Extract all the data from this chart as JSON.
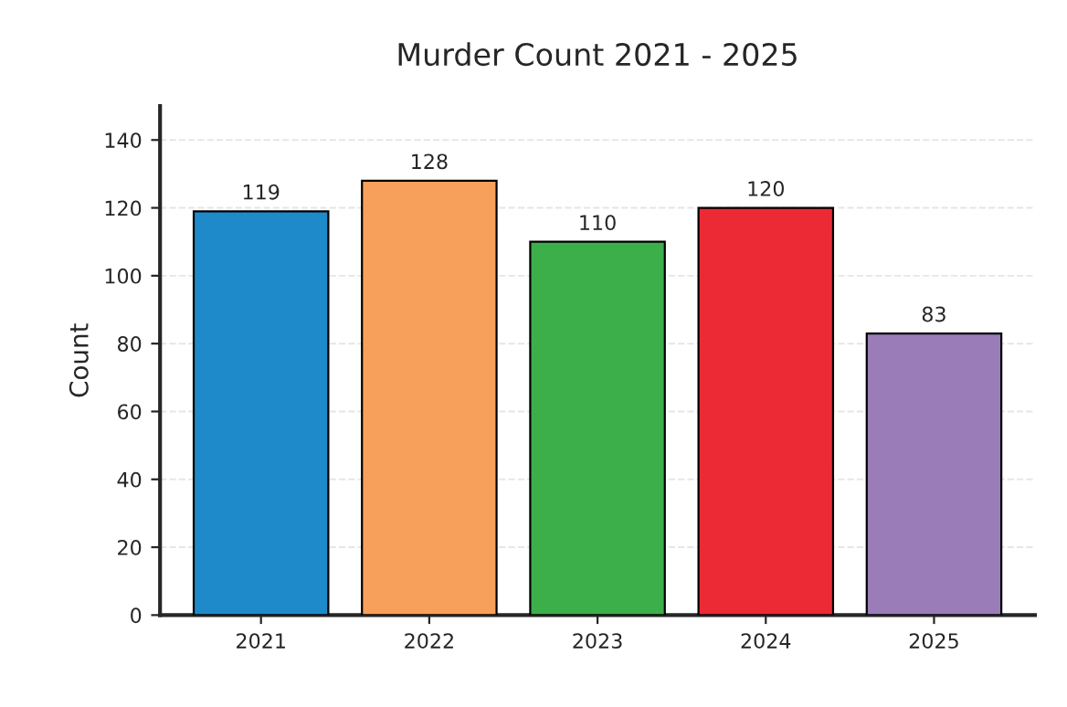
{
  "chart_data": {
    "type": "bar",
    "title": "Murder Count 2021 - 2025",
    "ylabel": "Count",
    "categories": [
      "2021",
      "2022",
      "2023",
      "2024",
      "2025"
    ],
    "values": [
      119,
      128,
      110,
      120,
      83
    ],
    "colors": [
      "#1f8ac9",
      "#f7a05b",
      "#3daf4a",
      "#ec2a35",
      "#9a7db8"
    ],
    "ylim": [
      0,
      150
    ],
    "yticks": [
      0,
      20,
      40,
      60,
      80,
      100,
      120,
      140
    ],
    "grid": "y",
    "data_labels": true,
    "legend": false
  }
}
